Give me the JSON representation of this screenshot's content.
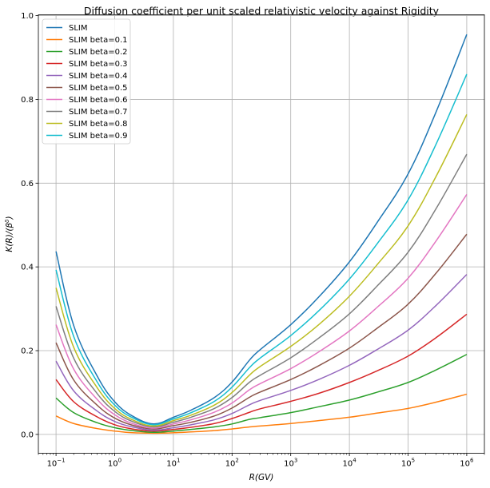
{
  "chart_data": {
    "type": "line",
    "title": "Diffusion coefficient per unit scaled relativistic velocity against Rigidity",
    "xlabel": "R(GV)",
    "ylabel": "K(R)/(β^δ)",
    "xscale": "log",
    "xlim": [
      0.05,
      2000000
    ],
    "ylim": [
      -0.045,
      1.002
    ],
    "grid": true,
    "legend_position": "top-left",
    "x_ticks": [
      {
        "value": 0.1,
        "base": "10",
        "exp": "−1"
      },
      {
        "value": 1,
        "base": "10",
        "exp": "0"
      },
      {
        "value": 10,
        "base": "10",
        "exp": "1"
      },
      {
        "value": 100,
        "base": "10",
        "exp": "2"
      },
      {
        "value": 1000,
        "base": "10",
        "exp": "3"
      },
      {
        "value": 10000,
        "base": "10",
        "exp": "4"
      },
      {
        "value": 100000,
        "base": "10",
        "exp": "5"
      },
      {
        "value": 1000000,
        "base": "10",
        "exp": "6"
      }
    ],
    "y_ticks": [
      {
        "value": 0.0,
        "label": "0.0"
      },
      {
        "value": 0.2,
        "label": "0.2"
      },
      {
        "value": 0.4,
        "label": "0.4"
      },
      {
        "value": 0.6,
        "label": "0.6"
      },
      {
        "value": 0.8,
        "label": "0.8"
      },
      {
        "value": 1.0,
        "label": "1.0"
      }
    ],
    "x": [
      0.1,
      0.2,
      0.5,
      1,
      2,
      4.6,
      10,
      20,
      50,
      100,
      200,
      300,
      1000,
      3000,
      10000,
      30000,
      100000,
      300000,
      1000000
    ],
    "series": [
      {
        "name": "SLIM",
        "color": "#1f77b4",
        "values": [
          0.437,
          0.26,
          0.14,
          0.078,
          0.044,
          0.025,
          0.041,
          0.058,
          0.088,
          0.125,
          0.178,
          0.202,
          0.262,
          0.328,
          0.412,
          0.507,
          0.622,
          0.77,
          0.955
        ]
      },
      {
        "name": "SLIM beta=0.1",
        "color": "#ff7f0e",
        "values": [
          0.044,
          0.026,
          0.014,
          0.008,
          0.004,
          0.003,
          0.004,
          0.006,
          0.009,
          0.013,
          0.018,
          0.02,
          0.026,
          0.033,
          0.041,
          0.051,
          0.062,
          0.077,
          0.096
        ]
      },
      {
        "name": "SLIM beta=0.2",
        "color": "#2ca02c",
        "values": [
          0.087,
          0.052,
          0.028,
          0.016,
          0.009,
          0.005,
          0.008,
          0.012,
          0.018,
          0.025,
          0.036,
          0.04,
          0.052,
          0.066,
          0.082,
          0.101,
          0.124,
          0.154,
          0.191
        ]
      },
      {
        "name": "SLIM beta=0.3",
        "color": "#d62728",
        "values": [
          0.131,
          0.078,
          0.042,
          0.023,
          0.013,
          0.008,
          0.012,
          0.017,
          0.026,
          0.038,
          0.053,
          0.061,
          0.079,
          0.098,
          0.124,
          0.152,
          0.187,
          0.231,
          0.287
        ]
      },
      {
        "name": "SLIM beta=0.4",
        "color": "#9467bd",
        "values": [
          0.175,
          0.104,
          0.056,
          0.031,
          0.018,
          0.01,
          0.016,
          0.023,
          0.035,
          0.05,
          0.071,
          0.081,
          0.105,
          0.131,
          0.165,
          0.203,
          0.249,
          0.308,
          0.382
        ]
      },
      {
        "name": "SLIM beta=0.5",
        "color": "#8c564b",
        "values": [
          0.219,
          0.13,
          0.07,
          0.039,
          0.022,
          0.013,
          0.021,
          0.029,
          0.044,
          0.063,
          0.089,
          0.101,
          0.131,
          0.164,
          0.206,
          0.254,
          0.311,
          0.385,
          0.478
        ]
      },
      {
        "name": "SLIM beta=0.6",
        "color": "#e377c2",
        "values": [
          0.262,
          0.156,
          0.084,
          0.047,
          0.026,
          0.015,
          0.025,
          0.035,
          0.053,
          0.075,
          0.107,
          0.121,
          0.157,
          0.197,
          0.247,
          0.304,
          0.373,
          0.462,
          0.573
        ]
      },
      {
        "name": "SLIM beta=0.7",
        "color": "#7f7f7f",
        "values": [
          0.306,
          0.182,
          0.098,
          0.055,
          0.031,
          0.018,
          0.029,
          0.041,
          0.062,
          0.088,
          0.125,
          0.141,
          0.183,
          0.23,
          0.288,
          0.355,
          0.435,
          0.539,
          0.669
        ]
      },
      {
        "name": "SLIM beta=0.8",
        "color": "#bcbd22",
        "values": [
          0.35,
          0.208,
          0.112,
          0.062,
          0.035,
          0.02,
          0.033,
          0.046,
          0.07,
          0.1,
          0.142,
          0.162,
          0.21,
          0.262,
          0.33,
          0.406,
          0.498,
          0.616,
          0.764
        ]
      },
      {
        "name": "SLIM beta=0.9",
        "color": "#17becf",
        "values": [
          0.393,
          0.234,
          0.126,
          0.07,
          0.04,
          0.023,
          0.037,
          0.052,
          0.079,
          0.113,
          0.16,
          0.182,
          0.236,
          0.295,
          0.371,
          0.456,
          0.56,
          0.693,
          0.86
        ]
      }
    ]
  }
}
